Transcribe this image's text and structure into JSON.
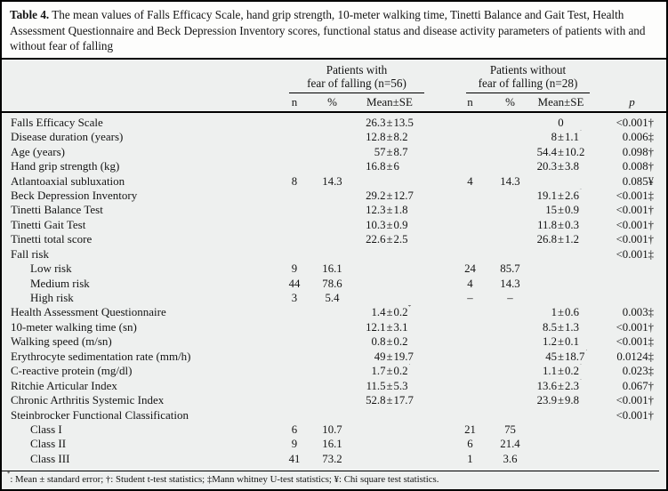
{
  "colors": {
    "border": "#000000",
    "table_bg": "#eef0ef",
    "caption_bg": "#fdfdfc",
    "text": "#141414"
  },
  "caption": {
    "label": "Table 4.",
    "text": "The mean values of Falls Efficacy Scale, hand grip strength, 10-meter walking time, Tinetti Balance and Gait Test, Health Assessment Questionnaire and Beck Depression Inventory scores, functional status and disease activity parameters of patients with and without fear of falling"
  },
  "header": {
    "group1_line1": "Patients with",
    "group1_line2": "fear of falling (n=56)",
    "group2_line1": "Patients without",
    "group2_line2": "fear of falling (n=28)",
    "subcols": [
      "n",
      "%",
      "Mean±SE"
    ],
    "p_label": "p"
  },
  "rows": [
    {
      "label": "Falls Efficacy Scale",
      "indent": false,
      "g1n": "",
      "g1pct": "",
      "g1mean": "26.3±13.5",
      "g2n": "",
      "g2pct": "",
      "g2mean": "0",
      "p": "<0.001†"
    },
    {
      "label": "Disease duration (years)",
      "indent": false,
      "g1n": "",
      "g1pct": "",
      "g1mean": "12.8±8.2",
      "g2n": "",
      "g2pct": "",
      "g2mean": "8±1.1*",
      "p": "0.006‡"
    },
    {
      "label": "Age (years)",
      "indent": false,
      "g1n": "",
      "g1pct": "",
      "g1mean": "57±8.7",
      "g2n": "",
      "g2pct": "",
      "g2mean": "54.4±10.2",
      "p": "0.098†"
    },
    {
      "label": "Hand grip strength (kg)",
      "indent": false,
      "g1n": "",
      "g1pct": "",
      "g1mean": "16.8±6",
      "g2n": "",
      "g2pct": "",
      "g2mean": "20.3±3.8",
      "p": "0.008†"
    },
    {
      "label": "Atlantoaxial subluxation",
      "indent": false,
      "g1n": "8",
      "g1pct": "14.3",
      "g1mean": "",
      "g2n": "4",
      "g2pct": "14.3",
      "g2mean": "",
      "p": "0.085¥"
    },
    {
      "label": "Beck Depression Inventory",
      "indent": false,
      "g1n": "",
      "g1pct": "",
      "g1mean": "29.2±12.7",
      "g2n": "",
      "g2pct": "",
      "g2mean": "19.1±2.6*",
      "p": "<0.001‡"
    },
    {
      "label": "Tinetti Balance Test",
      "indent": false,
      "g1n": "",
      "g1pct": "",
      "g1mean": "12.3±1.8",
      "g2n": "",
      "g2pct": "",
      "g2mean": "15±0.9",
      "p": "<0.001†"
    },
    {
      "label": "Tinetti Gait Test",
      "indent": false,
      "g1n": "",
      "g1pct": "",
      "g1mean": "10.3±0.9",
      "g2n": "",
      "g2pct": "",
      "g2mean": "11.8±0.3",
      "p": "<0.001†"
    },
    {
      "label": "Tinetti total score",
      "indent": false,
      "g1n": "",
      "g1pct": "",
      "g1mean": "22.6±2.5",
      "g2n": "",
      "g2pct": "",
      "g2mean": "26.8±1.2",
      "p": "<0.001†"
    },
    {
      "label": "Fall risk",
      "indent": false,
      "g1n": "",
      "g1pct": "",
      "g1mean": "",
      "g2n": "",
      "g2pct": "",
      "g2mean": "",
      "p": "<0.001‡"
    },
    {
      "label": "Low risk",
      "indent": true,
      "g1n": "9",
      "g1pct": "16.1",
      "g1mean": "",
      "g2n": "24",
      "g2pct": "85.7",
      "g2mean": "",
      "p": ""
    },
    {
      "label": "Medium risk",
      "indent": true,
      "g1n": "44",
      "g1pct": "78.6",
      "g1mean": "",
      "g2n": "4",
      "g2pct": "14.3",
      "g2mean": "",
      "p": ""
    },
    {
      "label": "High risk",
      "indent": true,
      "g1n": "3",
      "g1pct": "5.4",
      "g1mean": "",
      "g2n": "–",
      "g2pct": "–",
      "g2mean": "",
      "p": ""
    },
    {
      "label": "Health Assessment Questionnaire",
      "indent": false,
      "g1n": "",
      "g1pct": "",
      "g1mean": "1.4±0.2*",
      "g2n": "",
      "g2pct": "",
      "g2mean": "1±0.6",
      "p": "0.003‡"
    },
    {
      "label": "10-meter walking time (sn)",
      "indent": false,
      "g1n": "",
      "g1pct": "",
      "g1mean": "12.1±3.1",
      "g2n": "",
      "g2pct": "",
      "g2mean": "8.5±1.3",
      "p": "<0.001†"
    },
    {
      "label": "Walking speed (m/sn)",
      "indent": false,
      "g1n": "",
      "g1pct": "",
      "g1mean": "0.8±0.2",
      "g2n": "",
      "g2pct": "",
      "g2mean": "1.2±0.1",
      "p": "<0.001‡"
    },
    {
      "label": "Erythrocyte sedimentation rate (mm/h)",
      "indent": false,
      "g1n": "",
      "g1pct": "",
      "g1mean": "49±19.7",
      "g2n": "",
      "g2pct": "",
      "g2mean": "45±18.7*",
      "p": "0.0124‡"
    },
    {
      "label": "C-reactive protein (mg/dl)",
      "indent": false,
      "g1n": "",
      "g1pct": "",
      "g1mean": "1.7±0.2*",
      "g2n": "",
      "g2pct": "",
      "g2mean": "1.1±0.2*",
      "p": "0.023‡"
    },
    {
      "label": "Ritchie Articular Index",
      "indent": false,
      "g1n": "",
      "g1pct": "",
      "g1mean": "11.5±5.3",
      "g2n": "",
      "g2pct": "",
      "g2mean": "13.6±2.3*",
      "p": "0.067†"
    },
    {
      "label": "Chronic Arthritis Systemic Index",
      "indent": false,
      "g1n": "",
      "g1pct": "",
      "g1mean": "52.8±17.7",
      "g2n": "",
      "g2pct": "",
      "g2mean": "23.9±9.8",
      "p": "<0.001†"
    },
    {
      "label": "Steinbrocker Functional Classification",
      "indent": false,
      "g1n": "",
      "g1pct": "",
      "g1mean": "",
      "g2n": "",
      "g2pct": "",
      "g2mean": "",
      "p": "<0.001†"
    },
    {
      "label": "Class I",
      "indent": true,
      "g1n": "6",
      "g1pct": "10.7",
      "g1mean": "",
      "g2n": "21",
      "g2pct": "75",
      "g2mean": "",
      "p": ""
    },
    {
      "label": "Class II",
      "indent": true,
      "g1n": "9",
      "g1pct": "16.1",
      "g1mean": "",
      "g2n": "6",
      "g2pct": "21.4",
      "g2mean": "",
      "p": ""
    },
    {
      "label": "Class III",
      "indent": true,
      "g1n": "41",
      "g1pct": "73.2",
      "g1mean": "",
      "g2n": "1",
      "g2pct": "3.6",
      "g2mean": "",
      "p": ""
    }
  ],
  "footnote": "*: Mean ± standard error; †: Student t-test statistics; ‡Mann whitney U-test statistics; ¥: Chi square test statistics."
}
